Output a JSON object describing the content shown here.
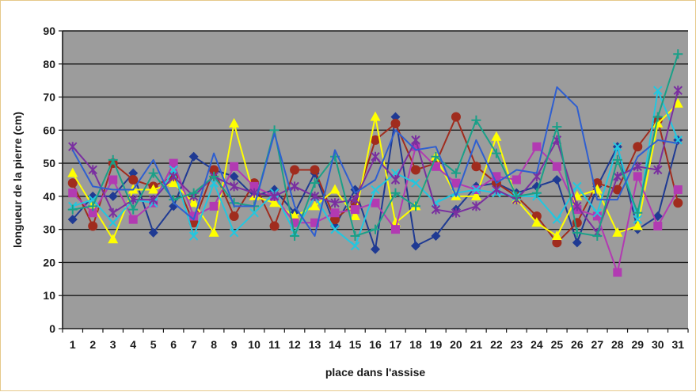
{
  "chart_data": {
    "type": "line",
    "title": "",
    "xlabel": "place dans l'assise",
    "ylabel": "longueur de la pierre (cm)",
    "ylim": [
      0,
      90
    ],
    "yticks": [
      0,
      10,
      20,
      30,
      40,
      50,
      60,
      70,
      80,
      90
    ],
    "grid": true,
    "legend": "none",
    "plot_background": "#9c9c9c",
    "x": [
      1,
      2,
      3,
      4,
      5,
      6,
      7,
      8,
      9,
      10,
      11,
      12,
      13,
      14,
      15,
      16,
      17,
      18,
      19,
      20,
      21,
      22,
      23,
      24,
      25,
      26,
      27,
      28,
      29,
      30,
      31
    ],
    "series": [
      {
        "color": "#1f3a93",
        "marker": "diamond",
        "values": [
          33,
          40,
          40,
          47,
          29,
          37,
          52,
          48,
          46,
          40,
          42,
          35,
          47,
          31,
          42,
          24,
          64,
          25,
          28,
          36,
          43,
          44,
          41,
          43,
          45,
          26,
          43,
          55,
          30,
          34,
          57
        ]
      },
      {
        "color": "#a02c1e",
        "marker": "circle",
        "values": [
          44,
          31,
          50,
          45,
          43,
          46,
          32,
          48,
          34,
          44,
          31,
          48,
          48,
          33,
          38,
          57,
          62,
          48,
          50,
          64,
          49,
          44,
          40,
          34,
          26,
          32,
          44,
          42,
          55,
          63,
          38
        ]
      },
      {
        "color": "#ffff00",
        "marker": "triangle",
        "values": [
          47,
          37,
          27,
          42,
          42,
          44,
          38,
          29,
          62,
          40,
          38,
          34,
          37,
          42,
          34,
          64,
          32,
          37,
          52,
          40,
          40,
          58,
          39,
          32,
          28,
          40,
          42,
          29,
          31,
          62,
          68
        ]
      },
      {
        "color": "#b23ab2",
        "marker": "square",
        "values": [
          41,
          35,
          45,
          33,
          38,
          50,
          34,
          37,
          49,
          43,
          40,
          32,
          32,
          35,
          36,
          38,
          30,
          55,
          49,
          44,
          42,
          46,
          45,
          55,
          49,
          36,
          34,
          17,
          46,
          31,
          42
        ]
      },
      {
        "color": "#22c7e0",
        "marker": "x",
        "values": [
          37,
          39,
          32,
          39,
          38,
          48,
          28,
          44,
          29,
          35,
          41,
          29,
          40,
          30,
          25,
          42,
          47,
          44,
          38,
          41,
          42,
          41,
          40,
          40,
          33,
          43,
          35,
          55,
          33,
          72,
          57
        ]
      },
      {
        "color": "#7a2fa0",
        "marker": "star",
        "values": [
          55,
          48,
          35,
          39,
          39,
          46,
          40,
          46,
          43,
          41,
          40,
          43,
          40,
          38,
          39,
          52,
          45,
          57,
          36,
          35,
          37,
          42,
          39,
          46,
          57,
          37,
          29,
          46,
          49,
          48,
          72
        ]
      },
      {
        "color": "#1aa088",
        "marker": "plus",
        "values": [
          36,
          37,
          51,
          36,
          47,
          39,
          41,
          46,
          38,
          37,
          60,
          28,
          44,
          52,
          28,
          30,
          41,
          37,
          52,
          47,
          63,
          53,
          40,
          41,
          61,
          29,
          28,
          51,
          35,
          64,
          83
        ]
      },
      {
        "color": "#2f5fd0",
        "marker": "none",
        "values": [
          54,
          43,
          42,
          42,
          51,
          38,
          33,
          53,
          37,
          37,
          59,
          37,
          28,
          54,
          41,
          45,
          60,
          54,
          55,
          40,
          57,
          44,
          48,
          47,
          73,
          67,
          39,
          39,
          52,
          57,
          56
        ]
      }
    ]
  }
}
